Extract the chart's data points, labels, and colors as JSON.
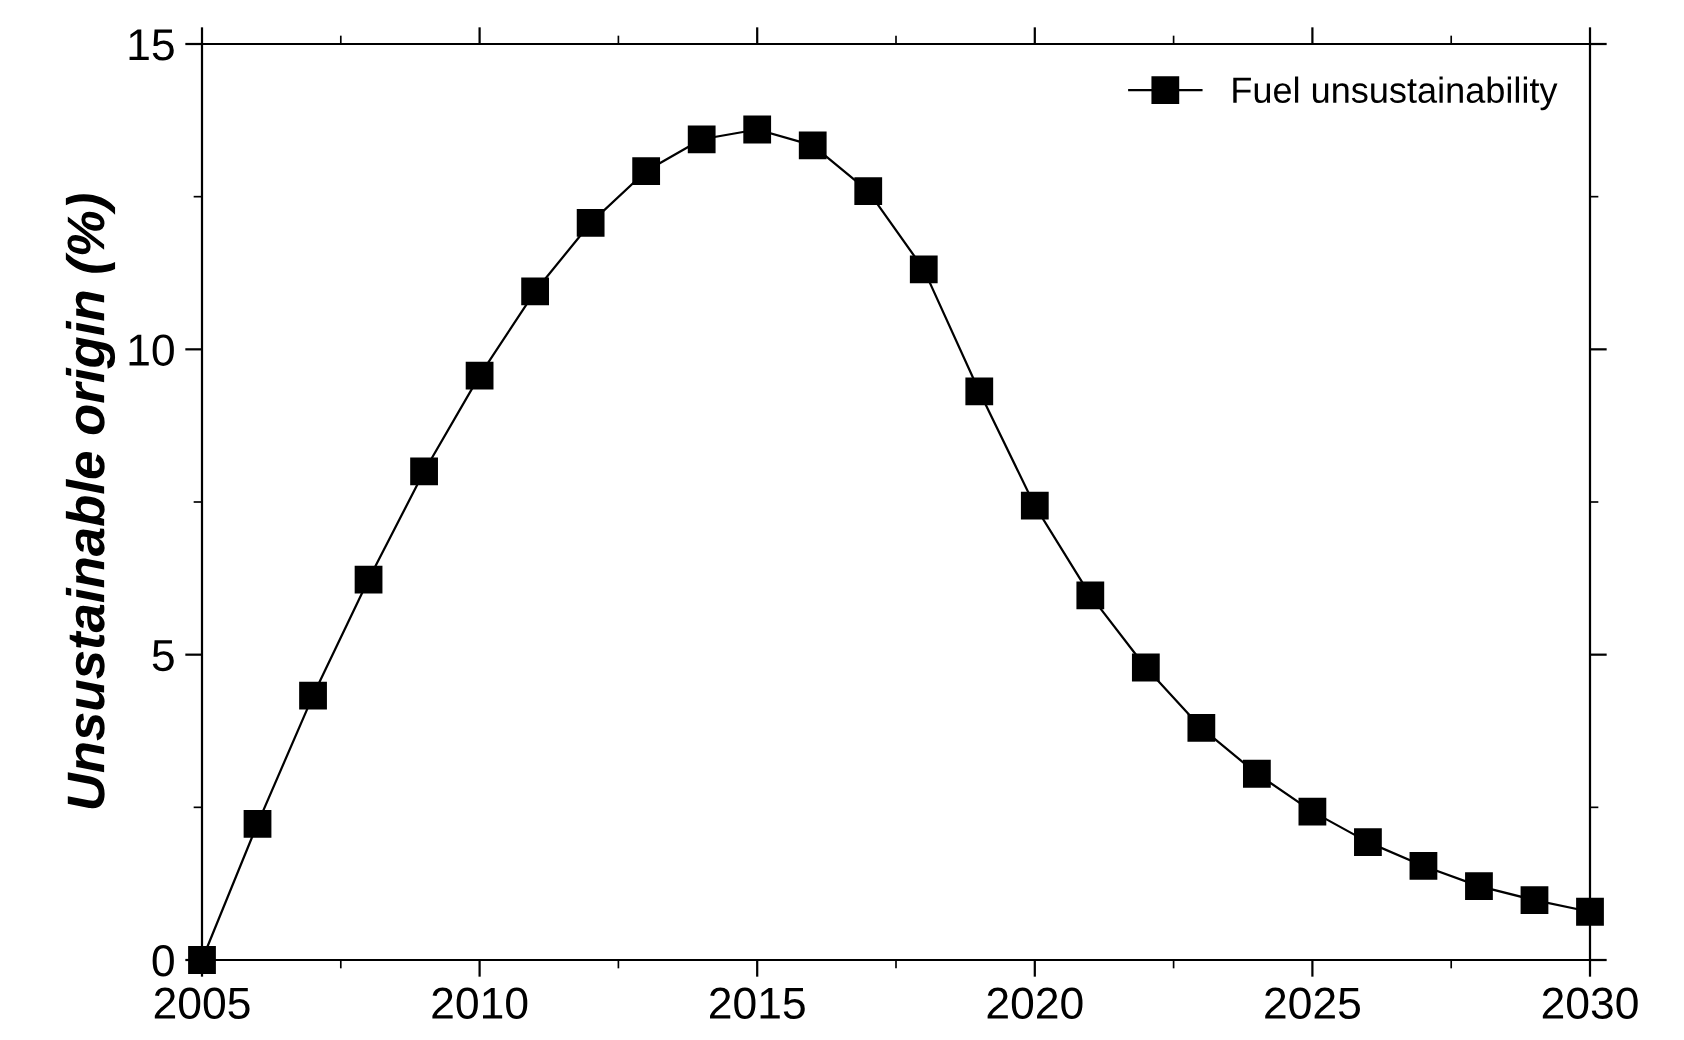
{
  "chart_data": {
    "type": "line",
    "ylabel": "Unsustainable origin (%)",
    "x": [
      2005,
      2006,
      2007,
      2008,
      2009,
      2010,
      2011,
      2012,
      2013,
      2014,
      2015,
      2016,
      2017,
      2018,
      2019,
      2020,
      2021,
      2022,
      2023,
      2024,
      2025,
      2026,
      2027,
      2028,
      2029,
      2030
    ],
    "series": [
      {
        "name": "Fuel unsustainability",
        "color": "#000000",
        "values": [
          0,
          2.23,
          4.33,
          6.23,
          8.0,
          9.57,
          10.95,
          12.07,
          12.92,
          13.44,
          13.6,
          13.34,
          12.59,
          11.31,
          9.31,
          7.44,
          5.97,
          4.79,
          3.8,
          3.05,
          2.43,
          1.93,
          1.54,
          1.21,
          0.98,
          0.79
        ]
      }
    ],
    "xlim": [
      2005,
      2030
    ],
    "xticks": [
      2005,
      2010,
      2015,
      2020,
      2025,
      2030
    ],
    "ylim": [
      0,
      15
    ],
    "yticks": [
      0,
      5,
      10,
      15
    ],
    "marker": "square",
    "line_style": "solid",
    "grid": false,
    "legend": "top right"
  }
}
